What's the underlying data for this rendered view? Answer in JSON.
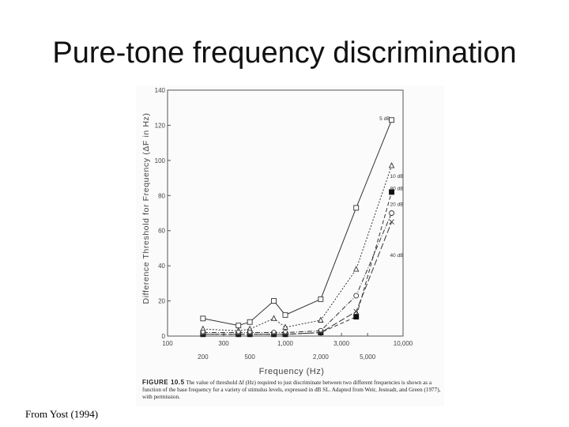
{
  "slide": {
    "title": "Pure-tone frequency discrimination",
    "source": "From Yost (1994)"
  },
  "caption": {
    "label": "FIGURE 10.5",
    "text": "The value of threshold Δf (Hz) required to just discriminate between two different frequencies is shown as a function of the base frequency for a variety of stimulus levels, expressed in dB SL. Adapted from Weir, Jesteadt, and Green (1977), with permission."
  },
  "chart_data": {
    "type": "line",
    "xlabel": "Frequency (Hz)",
    "ylabel": "Difference Threshold for Frequency (ΔF in Hz)",
    "xscale": "log",
    "xlim": [
      100,
      10000
    ],
    "ylim": [
      0,
      140
    ],
    "x_ticks_top": [
      "100",
      "300",
      "1,000",
      "3,000",
      "10,000"
    ],
    "x_ticks_bottom": [
      "200",
      "500",
      "2,000",
      "5,000"
    ],
    "y_ticks": [
      "0",
      "20",
      "40",
      "60",
      "80",
      "100",
      "120",
      "140"
    ],
    "grid": false,
    "series": [
      {
        "name": "5 dB",
        "marker": "square-open",
        "dash": "solid",
        "x": [
          200,
          400,
          500,
          800,
          1000,
          2000,
          4000,
          8000
        ],
        "y": [
          10,
          6,
          8,
          20,
          12,
          21,
          73,
          123
        ]
      },
      {
        "name": "10 dB",
        "marker": "triangle-open",
        "dash": "dotted",
        "x": [
          200,
          400,
          500,
          800,
          1000,
          2000,
          4000,
          8000
        ],
        "y": [
          4,
          3,
          4,
          10,
          5,
          9,
          38,
          97
        ]
      },
      {
        "name": "80 dB",
        "marker": "square-filled",
        "dash": "dashed",
        "x": [
          200,
          400,
          500,
          800,
          1000,
          2000,
          4000,
          8000
        ],
        "y": [
          1,
          1,
          1,
          1,
          1,
          2,
          11,
          82
        ]
      },
      {
        "name": "20 dB",
        "marker": "circle-open",
        "dash": "dashdot",
        "x": [
          200,
          400,
          500,
          800,
          1000,
          2000,
          4000,
          8000
        ],
        "y": [
          2,
          2,
          2,
          2,
          2,
          3,
          23,
          70
        ]
      },
      {
        "name": "40 dB",
        "marker": "x",
        "dash": "longdash",
        "x": [
          200,
          400,
          500,
          800,
          1000,
          2000,
          4000,
          8000
        ],
        "y": [
          1,
          1,
          1,
          1,
          1,
          2,
          14,
          65
        ]
      }
    ],
    "series_label_y": [
      123,
      90,
      83,
      74,
      45
    ]
  }
}
